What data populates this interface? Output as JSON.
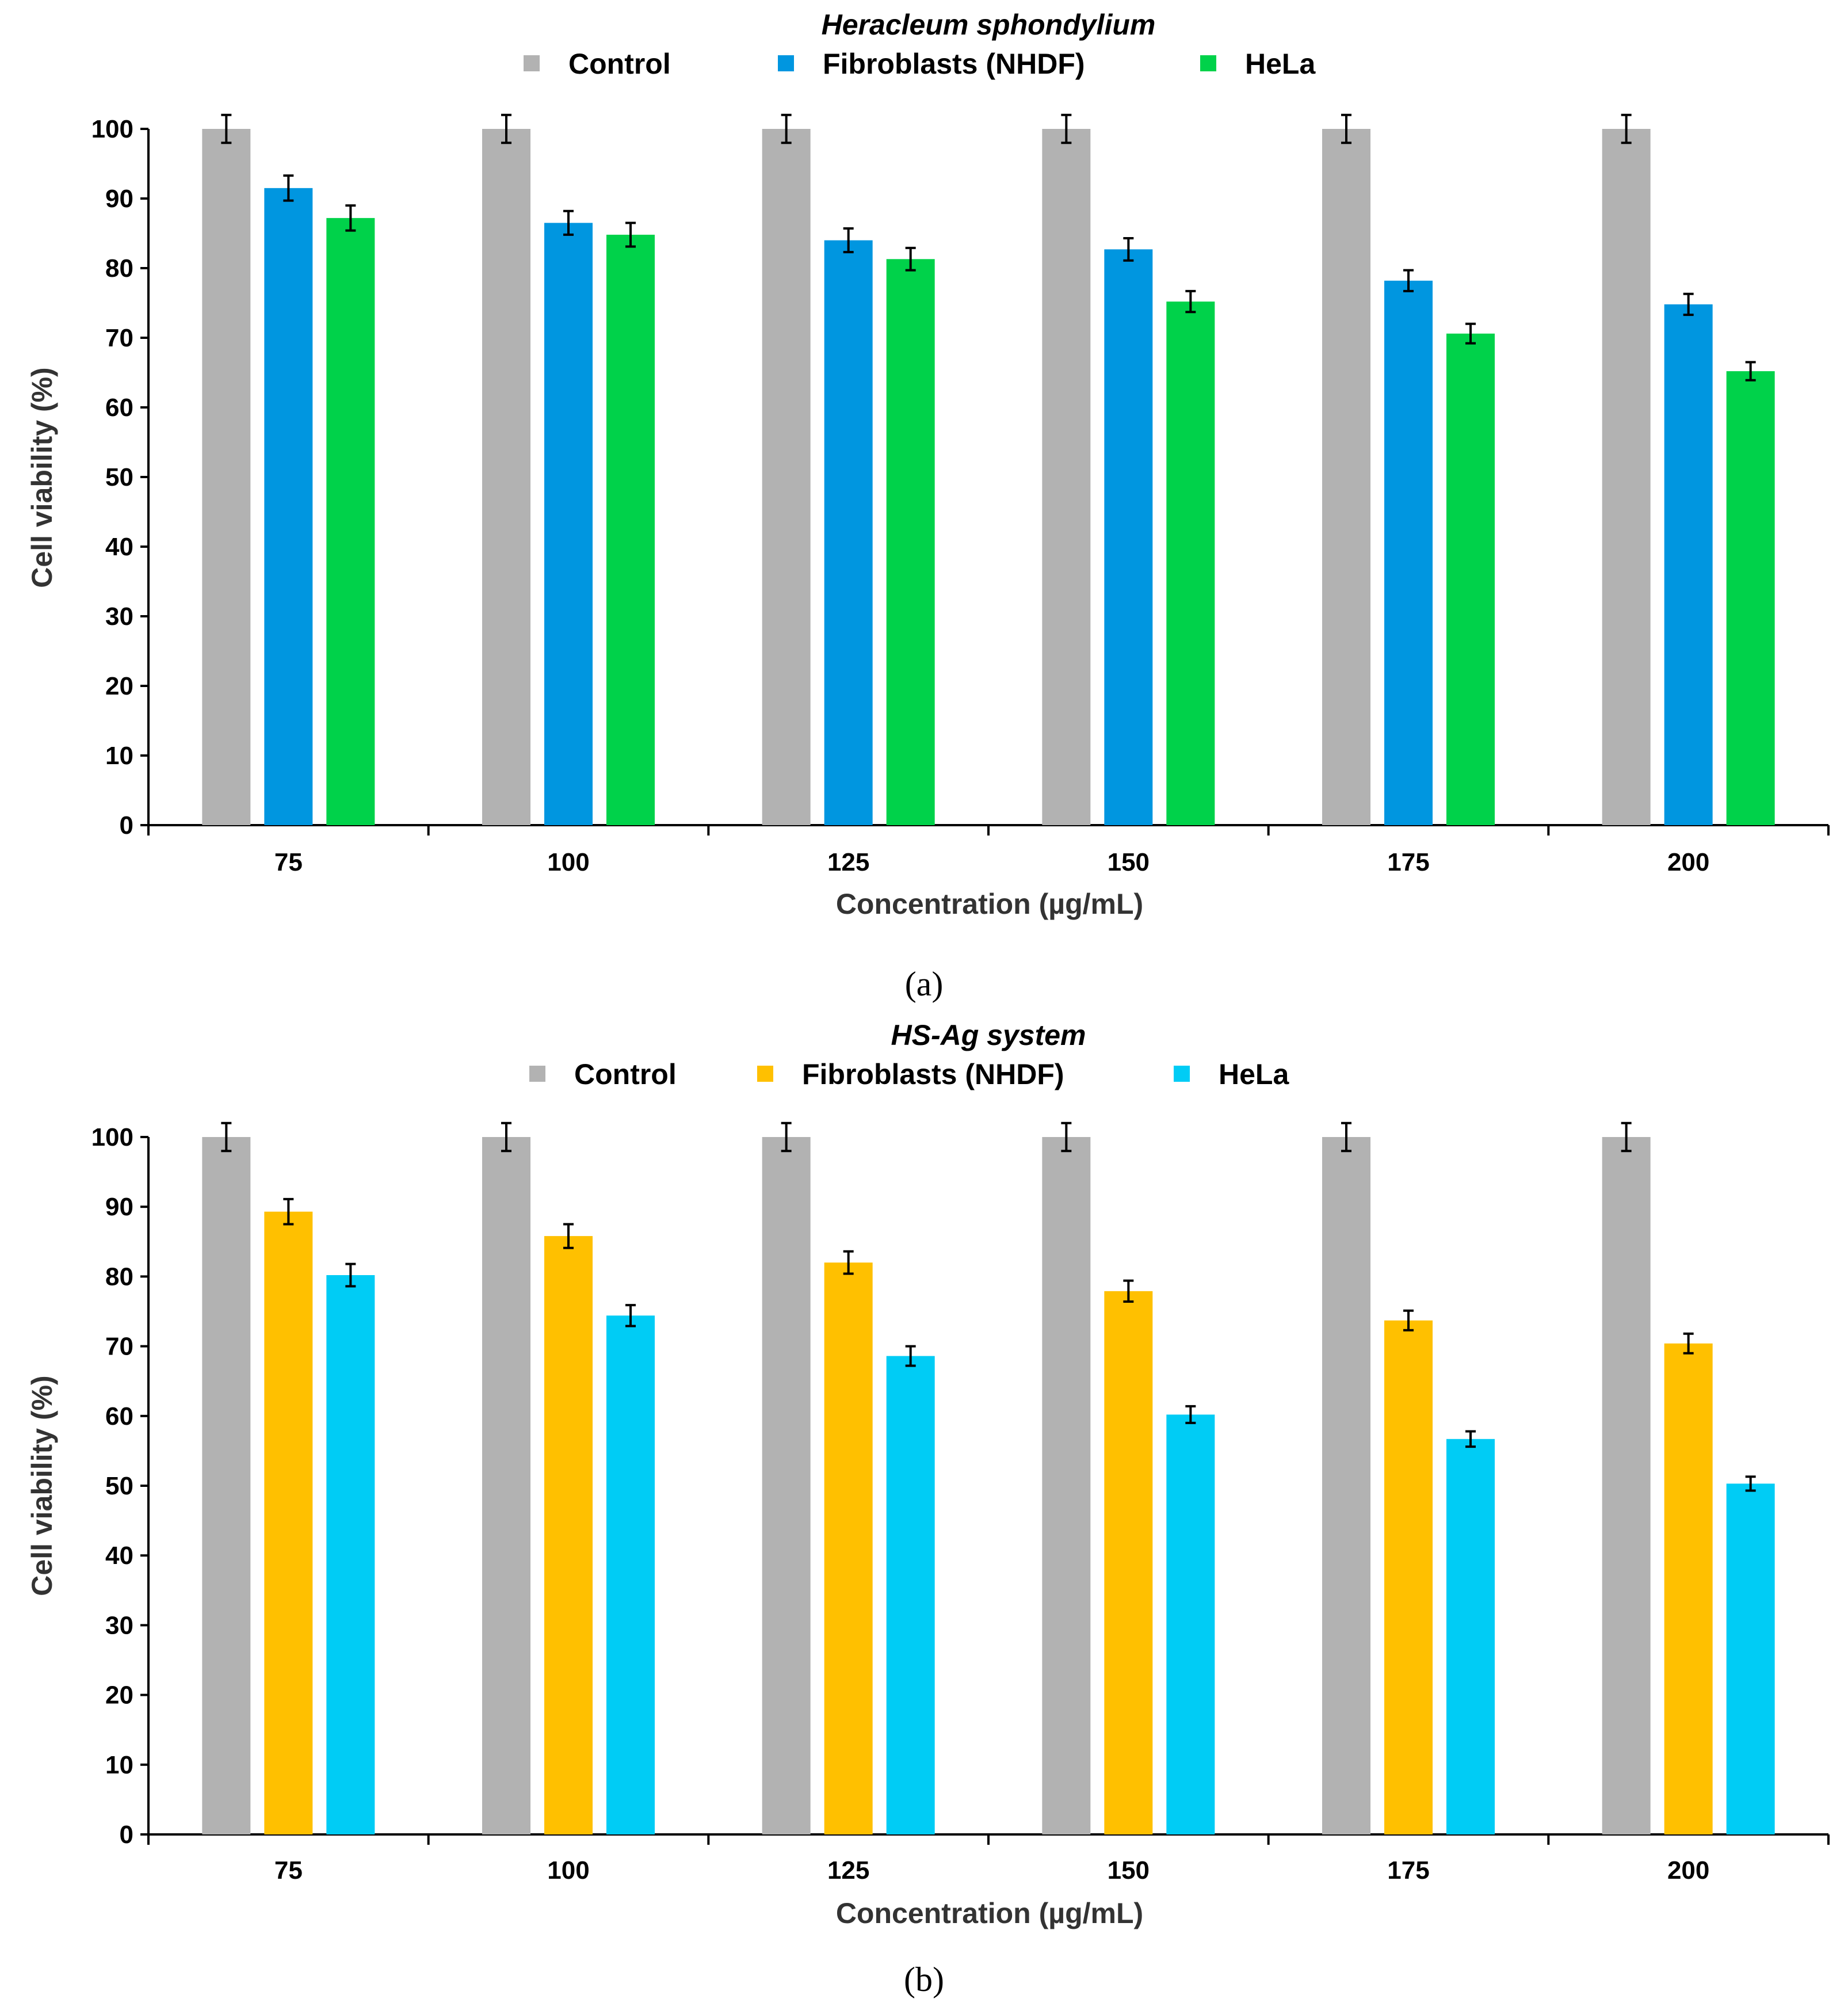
{
  "chart_data": [
    {
      "type": "bar",
      "panel_label": "(a)",
      "title": "Heracleum sphondylium",
      "xlabel": "Concentration (µg/mL)",
      "ylabel": "Cell viability (%)",
      "ylim": [
        0,
        100
      ],
      "yticks": [
        0,
        10,
        20,
        30,
        40,
        50,
        60,
        70,
        80,
        90,
        100
      ],
      "categories": [
        "75",
        "100",
        "125",
        "150",
        "175",
        "200"
      ],
      "legend_position": "top",
      "series": [
        {
          "name": "Control",
          "color": "#b2b2b2",
          "values": [
            100,
            100,
            100,
            100,
            100,
            100
          ],
          "errors": [
            2,
            2,
            2,
            2,
            2,
            2
          ]
        },
        {
          "name": "Fibroblasts (NHDF)",
          "color": "#0096e0",
          "values": [
            91.5,
            86.5,
            84,
            82.7,
            78.2,
            74.8
          ],
          "errors": [
            1.8,
            1.7,
            1.7,
            1.6,
            1.5,
            1.5
          ]
        },
        {
          "name": "HeLa",
          "color": "#00d24a",
          "values": [
            87.2,
            84.8,
            81.3,
            75.2,
            70.6,
            65.2
          ],
          "errors": [
            1.8,
            1.7,
            1.6,
            1.5,
            1.4,
            1.3
          ]
        }
      ]
    },
    {
      "type": "bar",
      "panel_label": "(b)",
      "title": "HS-Ag system",
      "xlabel": "Concentration (µg/mL)",
      "ylabel": "Cell viability (%)",
      "ylim": [
        0,
        100
      ],
      "yticks": [
        0,
        10,
        20,
        30,
        40,
        50,
        60,
        70,
        80,
        90,
        100
      ],
      "categories": [
        "75",
        "100",
        "125",
        "150",
        "175",
        "200"
      ],
      "legend_position": "top",
      "series": [
        {
          "name": "Control",
          "color": "#b2b2b2",
          "values": [
            100,
            100,
            100,
            100,
            100,
            100
          ],
          "errors": [
            2,
            2,
            2,
            2,
            2,
            2
          ]
        },
        {
          "name": "Fibroblasts (NHDF)",
          "color": "#ffc000",
          "values": [
            89.3,
            85.8,
            82,
            77.9,
            73.7,
            70.4
          ],
          "errors": [
            1.8,
            1.7,
            1.6,
            1.5,
            1.4,
            1.4
          ]
        },
        {
          "name": "HeLa",
          "color": "#00ccf5",
          "values": [
            80.2,
            74.4,
            68.6,
            60.2,
            56.7,
            50.3
          ],
          "errors": [
            1.6,
            1.5,
            1.4,
            1.2,
            1.1,
            1.0
          ]
        }
      ]
    }
  ]
}
